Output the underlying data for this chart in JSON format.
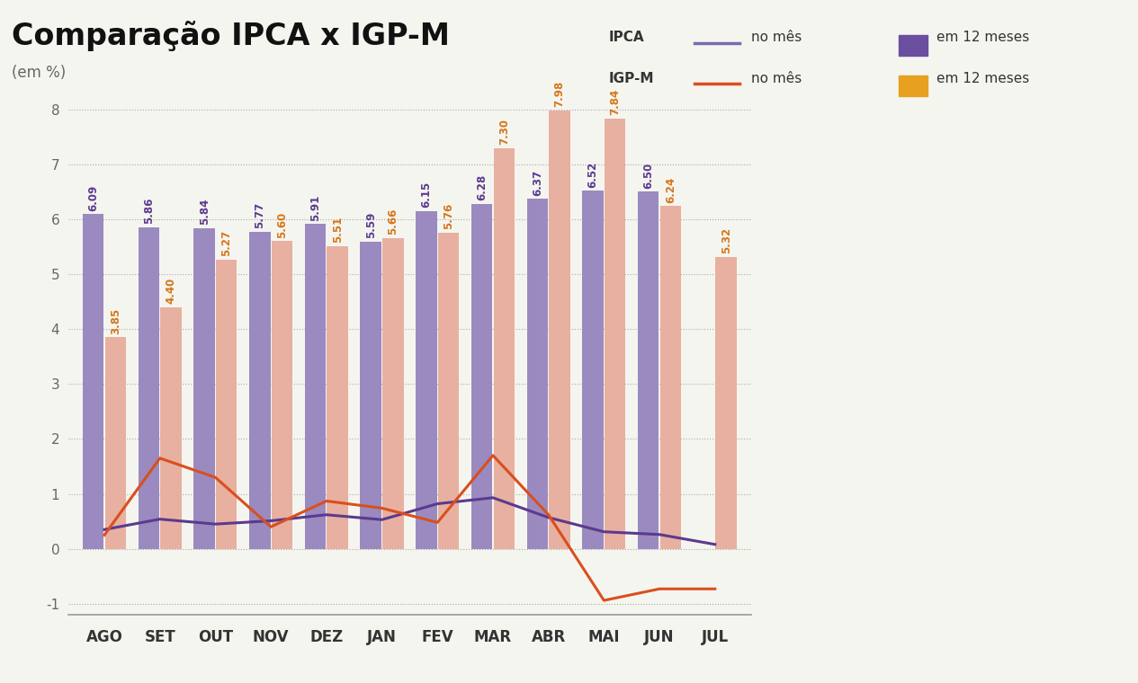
{
  "title": "Comparação IPCA x IGP-M",
  "subtitle": "(em %)",
  "months": [
    "AGO",
    "SET",
    "OUT",
    "NOV",
    "DEZ",
    "JAN",
    "FEV",
    "MAR",
    "ABR",
    "MAI",
    "JUN",
    "JUL"
  ],
  "ipca_12m": [
    6.09,
    5.86,
    5.84,
    5.77,
    5.91,
    5.59,
    6.15,
    6.28,
    6.37,
    6.52,
    6.5,
    0
  ],
  "ipca_12m_show": [
    true,
    true,
    true,
    true,
    true,
    true,
    true,
    true,
    true,
    true,
    true,
    false
  ],
  "igpm_12m": [
    3.85,
    4.4,
    5.27,
    5.6,
    5.51,
    5.66,
    5.76,
    7.3,
    7.98,
    7.84,
    6.24,
    5.32
  ],
  "ipca_month": [
    0.35,
    0.54,
    0.45,
    0.51,
    0.62,
    0.53,
    0.82,
    0.93,
    0.57,
    0.31,
    0.26,
    0.08
  ],
  "igpm_month": [
    0.25,
    1.65,
    1.3,
    0.4,
    0.87,
    0.74,
    0.48,
    1.7,
    0.62,
    -0.94,
    -0.73,
    -0.73
  ],
  "bar_color_ipca": "#9b8abf",
  "bar_color_igpm": "#e8b0a0",
  "line_color_ipca": "#5b3a8e",
  "line_color_igpm": "#d94f1e",
  "label_color_igpm_12m": "#d4771a",
  "label_color_ipca_12m": "#5b3a8e",
  "legend_line_ipca": "#7b6aaf",
  "legend_line_igpm": "#d94f1e",
  "legend_bar_ipca": "#6a4fa0",
  "legend_bar_igpm": "#e8a020",
  "ylim": [
    -1.2,
    8.5
  ],
  "yticks": [
    -1,
    0,
    1,
    2,
    3,
    4,
    5,
    6,
    7,
    8
  ],
  "bg_color": "#f5f5f0",
  "title_fontsize": 24,
  "subtitle_fontsize": 12
}
